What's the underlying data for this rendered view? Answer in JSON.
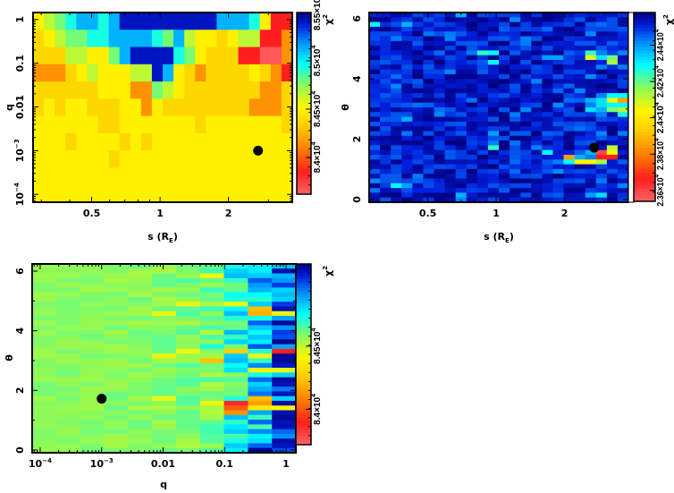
{
  "chart_data": [
    {
      "type": "heatmap",
      "title": "",
      "xlabel": {
        "text": "s (R",
        "sub": "E",
        "tail": ")"
      },
      "ylabel": "q",
      "xscale": "log",
      "yscale": "log",
      "xlim_log10": [
        -0.559,
        0.582
      ],
      "ylim_log10": [
        -4.18,
        0.16
      ],
      "xticks": [
        {
          "value": 0.5,
          "base": "0.5"
        },
        {
          "value": 1,
          "base": "1"
        },
        {
          "value": 2,
          "base": "2"
        }
      ],
      "yticks": [
        {
          "value": 0.0001,
          "base": "10",
          "sup": "−4"
        },
        {
          "value": 0.001,
          "base": "10",
          "sup": "−3"
        },
        {
          "value": 0.01,
          "base": "0.01"
        },
        {
          "value": 0.1,
          "base": "0.1"
        },
        {
          "value": 1,
          "base": "1"
        }
      ],
      "colorbar": {
        "label": "χ",
        "label_sup": "2",
        "range": [
          83620,
          85500
        ],
        "ticks": [
          {
            "value": 84000,
            "base": "8.4×10",
            "sup": "4"
          },
          {
            "value": 84500,
            "base": "8.45×10",
            "sup": "4"
          },
          {
            "value": 85000,
            "base": "8.5×10",
            "sup": "4"
          },
          {
            "value": 85500,
            "base": "8.55×10",
            "sup": "4"
          }
        ]
      },
      "best_fit": {
        "x": 2.7,
        "y": 0.001
      },
      "grid_levels_top_to_bottom": [
        "456788789999999998887411",
        "345667788887685443455112",
        "333554468999976433311002",
        "222345444559843233334321",
        "333333444226543333333223",
        "343443334424333333332223",
        "444444334444444344444443",
        "444344443434444444444444",
        "444444434444444444444444",
        "444444444444444444444444",
        "444444444444444444444444"
      ]
    },
    {
      "type": "heatmap",
      "xlabel": {
        "text": "s (R",
        "sub": "E",
        "tail": ")"
      },
      "ylabel": "θ",
      "xscale": "log",
      "yscale": "linear",
      "xlim_log10": [
        -0.559,
        0.582
      ],
      "ylim": [
        -0.09,
        6.2
      ],
      "xticks": [
        {
          "value": 0.5,
          "base": "0.5"
        },
        {
          "value": 1,
          "base": "1"
        },
        {
          "value": 2,
          "base": "2"
        }
      ],
      "yticks": [
        {
          "value": 0,
          "base": "0"
        },
        {
          "value": 2,
          "base": "2"
        },
        {
          "value": 4,
          "base": "4"
        },
        {
          "value": 6,
          "base": "6"
        }
      ],
      "colorbar": {
        "label": "χ",
        "label_sup": "2",
        "range": [
          23540,
          24580
        ],
        "ticks": [
          {
            "value": 23600,
            "base": "2.36×10",
            "sup": "4"
          },
          {
            "value": 23800,
            "base": "2.38×10",
            "sup": "4"
          },
          {
            "value": 24000,
            "base": "2.4×10",
            "sup": "4"
          },
          {
            "value": 24200,
            "base": "2.42×10",
            "sup": "4"
          },
          {
            "value": 24400,
            "base": "2.44×10",
            "sup": "4"
          }
        ]
      },
      "best_fit": {
        "x": 2.7,
        "y": 1.72
      },
      "grid": {
        "cols": 24,
        "rows": 40,
        "background_level": [
          0.88,
          1.0
        ]
      },
      "cells": [
        [
          10,
          8,
          0.68
        ],
        [
          11,
          8,
          0.72
        ],
        [
          11,
          10,
          0.72
        ],
        [
          20,
          8,
          0.68
        ],
        [
          20,
          9,
          0.5
        ],
        [
          21,
          9,
          0.75
        ],
        [
          22,
          9,
          0.62
        ],
        [
          22,
          10,
          0.57
        ],
        [
          0,
          2,
          0.72
        ],
        [
          3,
          2,
          0.8
        ],
        [
          8,
          0,
          0.8
        ],
        [
          16,
          9,
          0.82
        ],
        [
          17,
          9,
          0.82
        ],
        [
          20,
          18,
          0.8
        ],
        [
          21,
          17,
          0.85
        ],
        [
          22,
          17,
          0.72
        ],
        [
          23,
          17,
          0.72
        ],
        [
          22,
          18,
          0.5
        ],
        [
          23,
          18,
          0.3
        ],
        [
          21,
          18,
          0.75
        ],
        [
          20,
          19,
          0.85
        ],
        [
          21,
          19,
          0.75
        ],
        [
          22,
          19,
          0.72
        ],
        [
          23,
          19,
          0.72
        ],
        [
          20,
          20,
          0.75
        ],
        [
          21,
          20,
          0.8
        ],
        [
          22,
          20,
          0.62
        ],
        [
          23,
          20,
          0.57
        ],
        [
          23,
          21,
          0.7
        ],
        [
          21,
          21,
          0.85
        ],
        [
          3,
          22,
          0.8
        ],
        [
          11,
          25,
          0.82
        ],
        [
          11,
          27,
          0.85
        ],
        [
          11,
          28,
          0.68
        ],
        [
          16,
          29,
          0.72
        ],
        [
          18,
          30,
          0.3
        ],
        [
          19,
          30,
          0.8
        ],
        [
          20,
          29,
          0.8
        ],
        [
          20,
          30,
          0.85
        ],
        [
          21,
          29,
          0.05
        ],
        [
          22,
          29,
          0.48
        ],
        [
          22,
          28,
          0.55
        ],
        [
          21,
          30,
          0.12
        ],
        [
          22,
          30,
          0.12
        ],
        [
          18,
          31,
          0.72
        ],
        [
          19,
          31,
          0.48
        ],
        [
          20,
          31,
          0.48
        ],
        [
          21,
          31,
          0.57
        ],
        [
          2,
          36,
          0.72
        ],
        [
          3,
          36,
          0.82
        ],
        [
          8,
          38,
          0.8
        ],
        [
          20,
          38,
          0.82
        ],
        [
          21,
          38,
          0.75
        ]
      ]
    },
    {
      "type": "heatmap",
      "xlabel": {
        "text": "q"
      },
      "ylabel": "θ",
      "xscale": "log",
      "yscale": "linear",
      "xlim_log10": [
        -4.13,
        0.16
      ],
      "ylim": [
        -0.09,
        6.24
      ],
      "xticks": [
        {
          "value": 0.0001,
          "base": "10",
          "sup": "−4"
        },
        {
          "value": 0.001,
          "base": "10",
          "sup": "−3"
        },
        {
          "value": 0.01,
          "base": "0.01"
        },
        {
          "value": 0.1,
          "base": "0.1"
        },
        {
          "value": 1,
          "base": "1"
        }
      ],
      "yticks": [
        {
          "value": 0,
          "base": "0"
        },
        {
          "value": 2,
          "base": "2"
        },
        {
          "value": 4,
          "base": "4"
        },
        {
          "value": 6,
          "base": "6"
        }
      ],
      "colorbar": {
        "label": "χ",
        "label_sup": "2",
        "range": [
          83720,
          85150
        ],
        "ticks": [
          {
            "value": 84000,
            "base": "8.4×10",
            "sup": "4"
          },
          {
            "value": 84500,
            "base": "8.45×10",
            "sup": "4"
          }
        ]
      },
      "best_fit": {
        "x": 0.001,
        "y": 1.72
      },
      "grid": {
        "cols": 11,
        "rows": 40,
        "column_level": [
          0.6,
          0.6,
          0.6,
          0.6,
          0.6,
          0.6,
          0.61,
          0.63,
          0.7,
          0.78,
          0.88
        ],
        "column_spread": [
          0.02,
          0.02,
          0.025,
          0.03,
          0.035,
          0.04,
          0.05,
          0.07,
          0.1,
          0.12,
          0.12
        ]
      },
      "cells": [
        [
          5,
          10,
          0.5
        ],
        [
          6,
          8,
          0.5
        ],
        [
          7,
          2,
          0.5
        ],
        [
          8,
          8,
          0.5
        ],
        [
          9,
          9,
          0.35
        ],
        [
          9,
          10,
          0.33
        ],
        [
          7,
          20,
          0.36
        ],
        [
          8,
          18,
          0.38
        ],
        [
          10,
          18,
          0.12
        ],
        [
          6,
          18,
          0.5
        ],
        [
          5,
          19,
          0.5
        ],
        [
          8,
          29,
          0.1
        ],
        [
          8,
          30,
          0.2
        ],
        [
          8,
          31,
          0.28
        ],
        [
          9,
          28,
          0.35
        ],
        [
          9,
          29,
          0.3
        ],
        [
          9,
          30,
          0.45
        ],
        [
          7,
          29,
          0.5
        ],
        [
          5,
          28,
          0.5
        ],
        [
          10,
          1,
          0.97
        ],
        [
          10,
          12,
          0.98
        ],
        [
          10,
          16,
          0.99
        ],
        [
          10,
          24,
          0.98
        ],
        [
          10,
          25,
          0.96
        ],
        [
          10,
          32,
          0.98
        ],
        [
          10,
          33,
          0.96
        ],
        [
          10,
          37,
          0.97
        ],
        [
          10,
          38,
          0.95
        ],
        [
          9,
          39,
          0.99
        ],
        [
          10,
          10,
          0.5
        ],
        [
          10,
          22,
          0.5
        ],
        [
          9,
          19,
          0.5
        ],
        [
          9,
          22,
          0.5
        ],
        [
          9,
          0,
          0.74
        ],
        [
          9,
          1,
          0.74
        ],
        [
          9,
          3,
          0.88
        ],
        [
          10,
          30,
          0.48
        ],
        [
          8,
          39,
          0.74
        ]
      ]
    }
  ]
}
